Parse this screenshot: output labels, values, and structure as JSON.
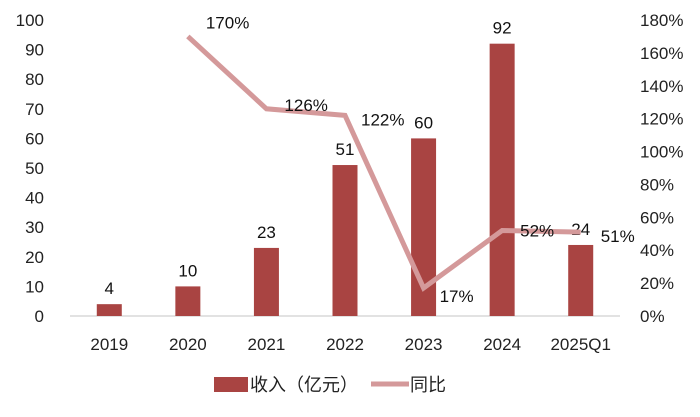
{
  "chart_data": {
    "type": "bar+line",
    "title": "",
    "categories": [
      "2019",
      "2020",
      "2021",
      "2022",
      "2023",
      "2024",
      "2025Q1"
    ],
    "series": [
      {
        "name": "收入（亿元）",
        "type": "bar",
        "axis": "left",
        "color": "#A94442",
        "values": [
          4,
          10,
          23,
          51,
          60,
          92,
          24
        ],
        "labels": [
          "4",
          "10",
          "23",
          "51",
          "60",
          "92",
          "24"
        ]
      },
      {
        "name": "同比",
        "type": "line",
        "axis": "right",
        "color": "#D4999A",
        "values": [
          null,
          170,
          126,
          122,
          17,
          52,
          51
        ],
        "labels": [
          "",
          "170%",
          "126%",
          "122%",
          "17%",
          "52%",
          "51%"
        ]
      }
    ],
    "left_axis": {
      "ylim": [
        0,
        100
      ],
      "ticks": [
        "0",
        "10",
        "20",
        "30",
        "40",
        "50",
        "60",
        "70",
        "80",
        "90",
        "100"
      ]
    },
    "right_axis": {
      "ylim": [
        0,
        180
      ],
      "ticks": [
        "0%",
        "20%",
        "40%",
        "60%",
        "80%",
        "100%",
        "120%",
        "140%",
        "160%",
        "180%"
      ]
    },
    "xlabel": "",
    "ylabel": "",
    "grid": false,
    "legend_position": "bottom"
  },
  "legend": {
    "bar_label": "收入（亿元）",
    "line_label": "同比"
  }
}
